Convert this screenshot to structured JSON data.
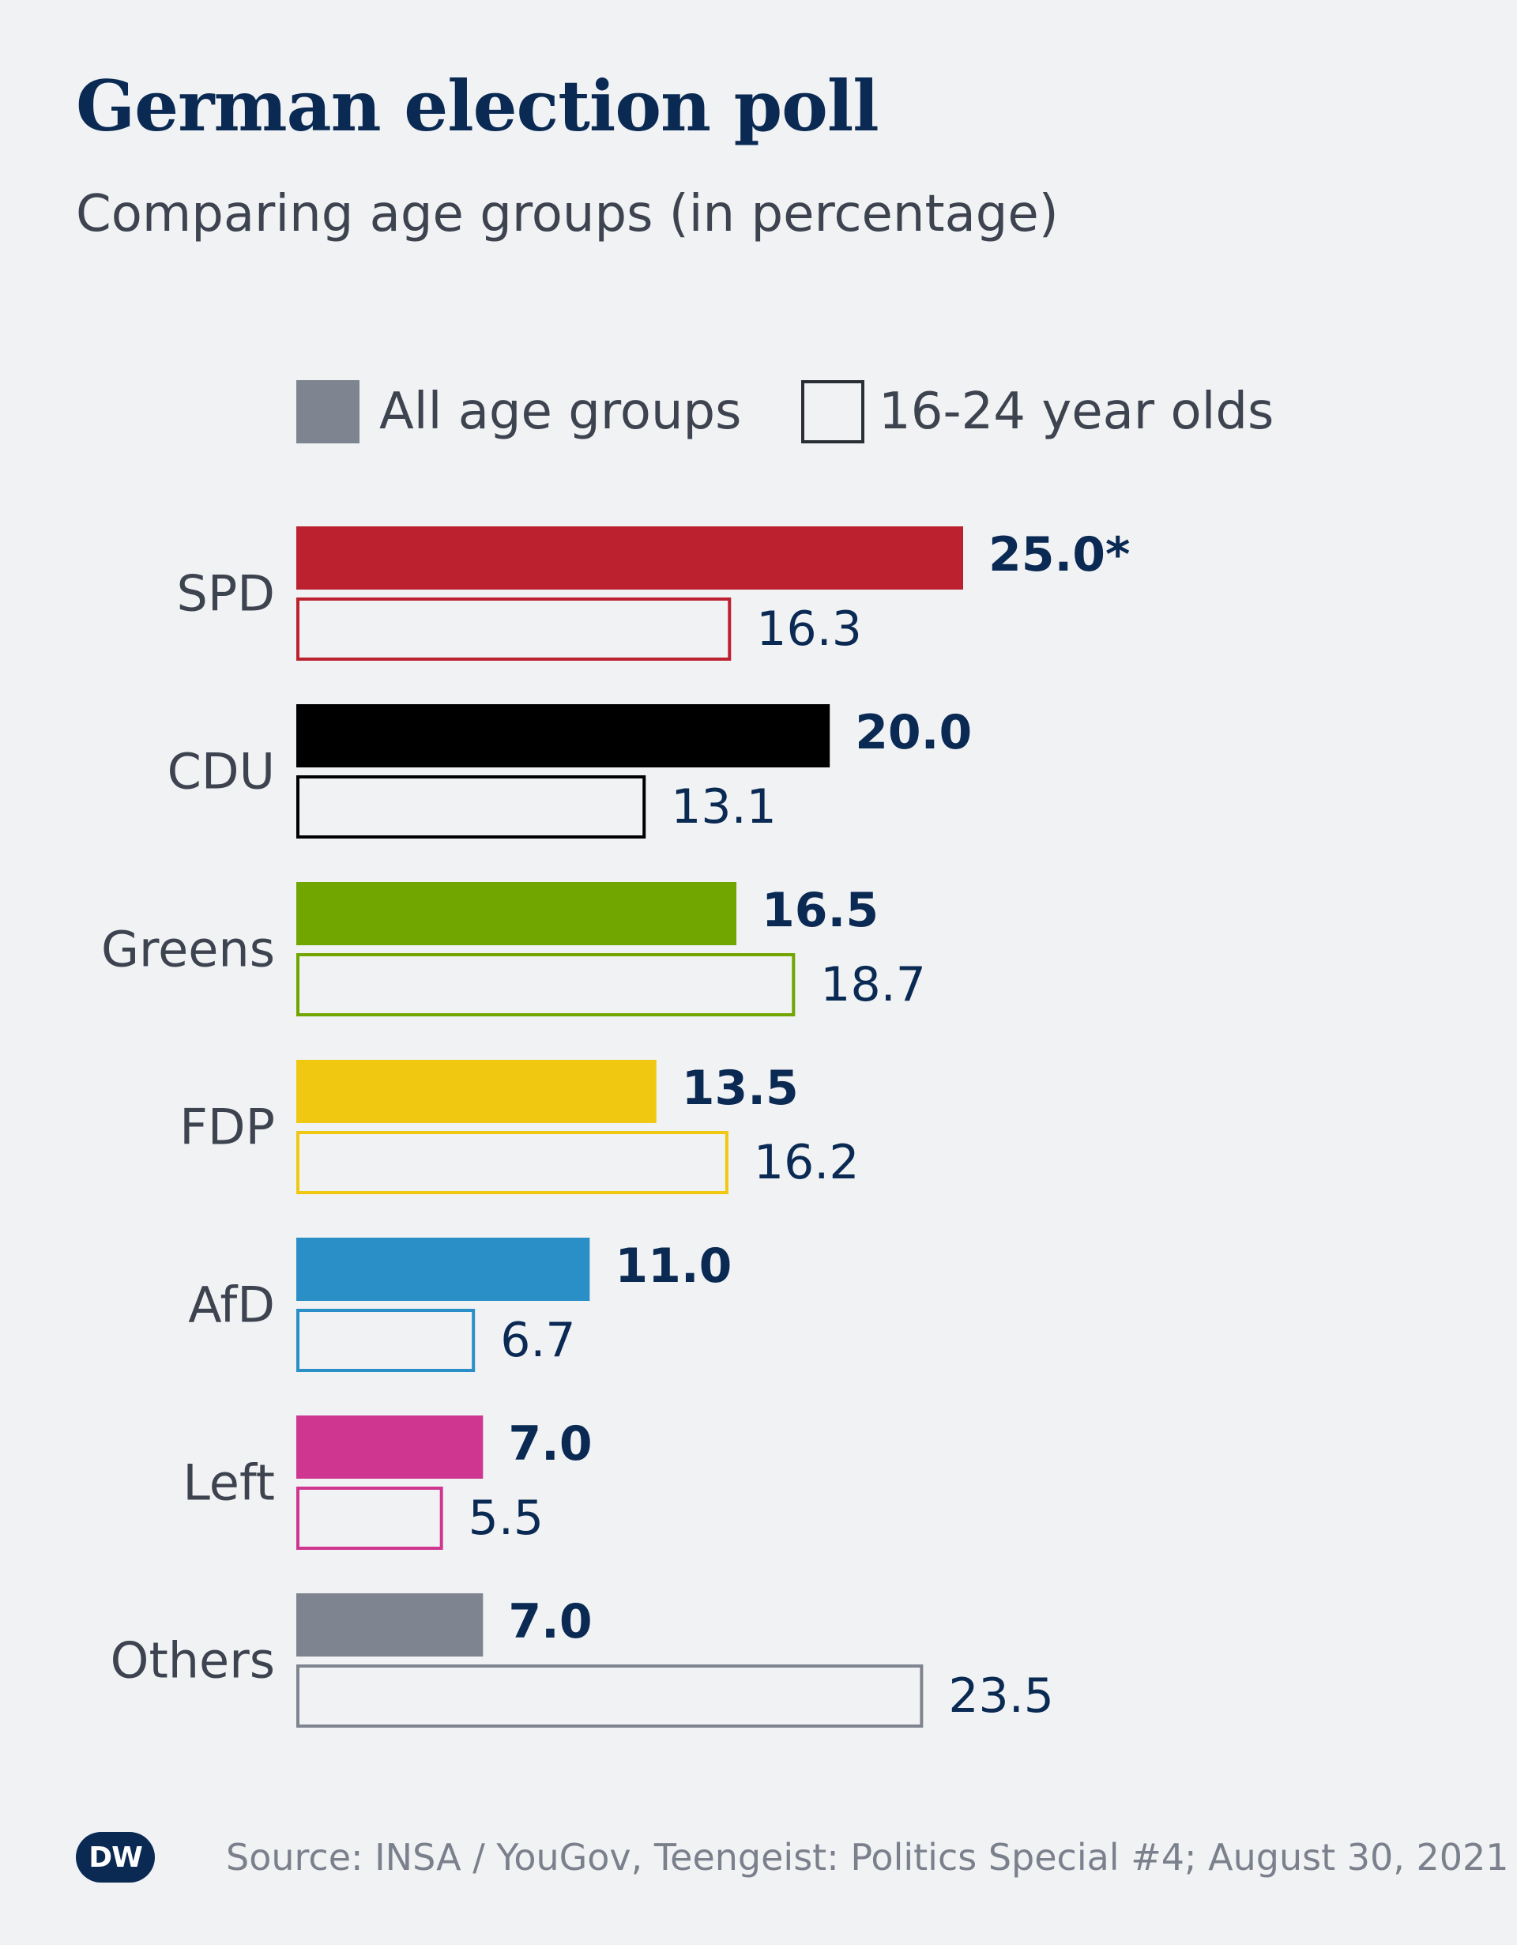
{
  "header": {
    "title": "German election poll",
    "subtitle": "Comparing age groups (in percentage)"
  },
  "chart_data": {
    "type": "bar",
    "orientation": "horizontal",
    "title": "German election poll",
    "subtitle": "Comparing age groups (in percentage)",
    "categories": [
      "SPD",
      "CDU",
      "Greens",
      "FDP",
      "AfD",
      "Left",
      "Others"
    ],
    "category_colors": [
      "#bc212f",
      "#000000",
      "#71a500",
      "#f0c812",
      "#2a8fc7",
      "#cf3690",
      "#7f8590"
    ],
    "series": [
      {
        "name": "All age groups",
        "style": "filled",
        "values": [
          25.0,
          20.0,
          16.5,
          13.5,
          11.0,
          7.0,
          7.0
        ],
        "labels": [
          "25.0*",
          "20.0",
          "16.5",
          "13.5",
          "11.0",
          "7.0",
          "7.0"
        ]
      },
      {
        "name": "16-24 year olds",
        "style": "outline",
        "values": [
          16.3,
          13.1,
          18.7,
          16.2,
          6.7,
          5.5,
          23.5
        ],
        "labels": [
          "16.3",
          "13.1",
          "18.7",
          "16.2",
          "6.7",
          "5.5",
          "23.5"
        ]
      }
    ],
    "xlim": [
      0,
      25
    ],
    "grid": false,
    "legend_position": "top",
    "legend_swatch_colors": [
      "#7f8590",
      "#2a2f36"
    ]
  },
  "footer": {
    "logo_text": "DW",
    "source": "Source: INSA / YouGov, Teengeist: Politics Special #4; August 30, 2021"
  }
}
